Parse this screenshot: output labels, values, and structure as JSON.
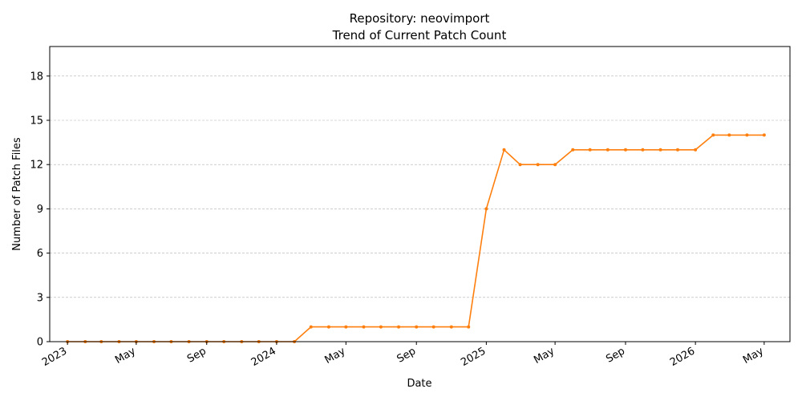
{
  "chart_data": {
    "type": "line",
    "title": "Repository: neovimport",
    "subtitle": "Trend of Current Patch Count",
    "xlabel": "Date",
    "ylabel": "Number of Patch Files",
    "ylim": [
      0,
      20
    ],
    "yticks": [
      0,
      3,
      6,
      9,
      12,
      15,
      18
    ],
    "xlim": [
      "2022-12-01",
      "2026-06-15"
    ],
    "xticks": [
      {
        "date": "2023-01-01",
        "label": "2023"
      },
      {
        "date": "2023-05-01",
        "label": "May"
      },
      {
        "date": "2023-09-01",
        "label": "Sep"
      },
      {
        "date": "2024-01-01",
        "label": "2024"
      },
      {
        "date": "2024-05-01",
        "label": "May"
      },
      {
        "date": "2024-09-01",
        "label": "Sep"
      },
      {
        "date": "2025-01-01",
        "label": "2025"
      },
      {
        "date": "2025-05-01",
        "label": "May"
      },
      {
        "date": "2025-09-01",
        "label": "Sep"
      },
      {
        "date": "2026-01-01",
        "label": "2026"
      },
      {
        "date": "2026-05-01",
        "label": "May"
      }
    ],
    "grid": "y",
    "color": "#ff7f0e",
    "series": [
      {
        "x": [
          "2023-01-01",
          "2023-02-01",
          "2023-03-01",
          "2023-04-01",
          "2023-05-01",
          "2023-06-01",
          "2023-07-01",
          "2023-08-01",
          "2023-09-01",
          "2023-10-01",
          "2023-11-01",
          "2023-12-01",
          "2024-01-01",
          "2024-02-01",
          "2024-03-01",
          "2024-04-01",
          "2024-05-01",
          "2024-06-01",
          "2024-07-01",
          "2024-08-01",
          "2024-09-01",
          "2024-10-01",
          "2024-11-01",
          "2024-12-01",
          "2025-01-01",
          "2025-02-01",
          "2025-03-01",
          "2025-04-01",
          "2025-05-01",
          "2025-06-01",
          "2025-07-01",
          "2025-08-01",
          "2025-09-01",
          "2025-10-01",
          "2025-11-01",
          "2025-12-01",
          "2026-01-01",
          "2026-02-01",
          "2026-03-01",
          "2026-04-01",
          "2026-05-01"
        ],
        "values": [
          0,
          0,
          0,
          0,
          0,
          0,
          0,
          0,
          0,
          0,
          0,
          0,
          0,
          0,
          1,
          1,
          1,
          1,
          1,
          1,
          1,
          1,
          1,
          1,
          9,
          13,
          12,
          12,
          12,
          13,
          13,
          13,
          13,
          13,
          13,
          13,
          13,
          14,
          14,
          14,
          14
        ]
      }
    ]
  }
}
